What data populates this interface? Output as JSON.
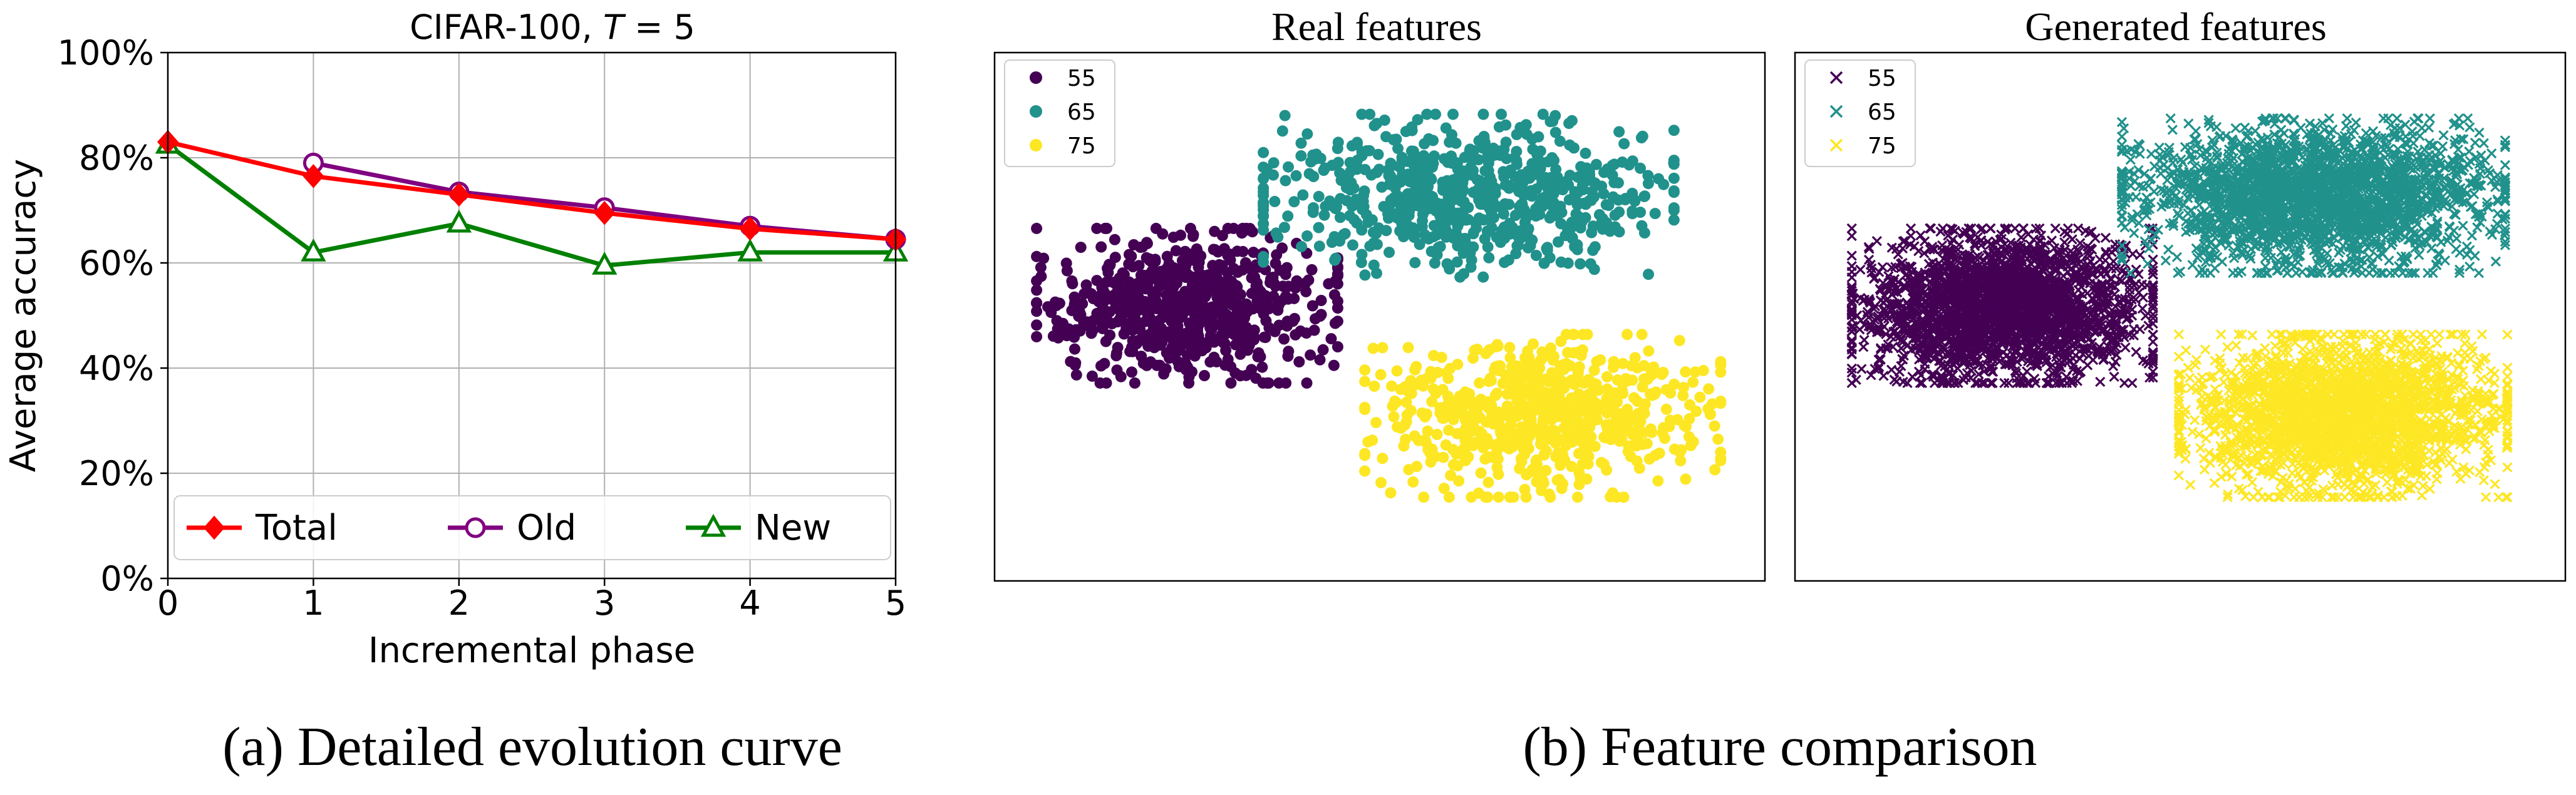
{
  "figure": {
    "caption_a": "(a) Detailed evolution curve",
    "caption_b": "(b) Feature comparison"
  },
  "chart_data": [
    {
      "type": "line",
      "title": "CIFAR-100, ",
      "title_italic": "T",
      "title_suffix": " = 5",
      "xlabel": "Incremental phase",
      "ylabel": "Average accuracy",
      "x": [
        0,
        1,
        2,
        3,
        4,
        5
      ],
      "xlim": [
        0,
        5
      ],
      "ylim": [
        0,
        100
      ],
      "x_ticks": [
        "0",
        "1",
        "2",
        "3",
        "4",
        "5"
      ],
      "y_ticks": [
        "0%",
        "20%",
        "40%",
        "60%",
        "80%",
        "100%"
      ],
      "grid": true,
      "legend_position": "bottom",
      "series": [
        {
          "name": "Total",
          "color": "#ff0000",
          "marker": "diamond-filled",
          "values": [
            83,
            76.5,
            73,
            69.5,
            66.5,
            64.5
          ]
        },
        {
          "name": "Old",
          "color": "#800080",
          "marker": "circle-open",
          "values": [
            null,
            79,
            73.5,
            70.5,
            67,
            64.5
          ]
        },
        {
          "name": "New",
          "color": "#008000",
          "marker": "triangle-open",
          "values": [
            82.5,
            62,
            67.5,
            59.5,
            62,
            62
          ]
        }
      ]
    },
    {
      "type": "scatter",
      "title": "Real features",
      "marker": "dot",
      "axes_visible": false,
      "legend_position": "top-left",
      "series": [
        {
          "name": "55",
          "color": "#440154",
          "center": [
            -0.65,
            0.05
          ],
          "spread": [
            0.55,
            0.38
          ],
          "count": 700
        },
        {
          "name": "65",
          "color": "#21918c",
          "center": [
            0.3,
            0.55
          ],
          "spread": [
            0.75,
            0.4
          ],
          "count": 700
        },
        {
          "name": "75",
          "color": "#fde725",
          "center": [
            0.55,
            -0.45
          ],
          "spread": [
            0.65,
            0.4
          ],
          "count": 700
        }
      ]
    },
    {
      "type": "scatter",
      "title": "Generated features",
      "marker": "x",
      "axes_visible": false,
      "legend_position": "top-left",
      "series": [
        {
          "name": "55",
          "color": "#440154",
          "center": [
            -0.6,
            0.05
          ],
          "spread": [
            0.55,
            0.38
          ],
          "count": 2400
        },
        {
          "name": "65",
          "color": "#21918c",
          "center": [
            0.45,
            0.55
          ],
          "spread": [
            0.7,
            0.38
          ],
          "count": 2400
        },
        {
          "name": "75",
          "color": "#fde725",
          "center": [
            0.55,
            -0.45
          ],
          "spread": [
            0.6,
            0.4
          ],
          "count": 2400
        }
      ]
    }
  ]
}
